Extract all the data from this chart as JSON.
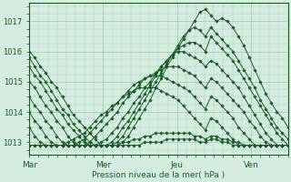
{
  "title": "Pression niveau de la mer( hPa )",
  "bg_color": "#d4ede0",
  "grid_color": "#a8cdb8",
  "line_color": "#1a5c28",
  "ylim": [
    1012.6,
    1017.6
  ],
  "yticks": [
    1013,
    1014,
    1015,
    1016,
    1017
  ],
  "xtick_labels": [
    "Mar",
    "Mer",
    "Jeu",
    "Ven"
  ],
  "xtick_positions": [
    0,
    48,
    96,
    144
  ],
  "total_hours": 168,
  "series": [
    [
      1016.0,
      1015.8,
      1015.5,
      1015.3,
      1015.0,
      1014.8,
      1014.5,
      1014.2,
      1013.9,
      1013.7,
      1013.5,
      1013.3,
      1013.1,
      1012.9,
      1012.9,
      1012.9,
      1012.9,
      1013.0,
      1013.2,
      1013.5,
      1013.8,
      1014.1,
      1014.4,
      1014.8,
      1015.1,
      1015.5,
      1015.8,
      1016.1,
      1016.4,
      1016.7,
      1017.0,
      1017.3,
      1017.4,
      1017.2,
      1017.0,
      1017.1,
      1017.0,
      1016.8,
      1016.5,
      1016.2,
      1015.8,
      1015.4,
      1015.0,
      1014.6,
      1014.3,
      1014.0,
      1013.8,
      1013.5
    ],
    [
      1015.8,
      1015.5,
      1015.2,
      1015.0,
      1014.7,
      1014.4,
      1014.1,
      1013.9,
      1013.6,
      1013.4,
      1013.2,
      1013.0,
      1012.9,
      1012.9,
      1012.9,
      1012.9,
      1013.0,
      1013.2,
      1013.5,
      1013.8,
      1014.1,
      1014.4,
      1014.7,
      1015.0,
      1015.3,
      1015.6,
      1015.9,
      1016.2,
      1016.5,
      1016.7,
      1016.8,
      1016.7,
      1016.5,
      1016.8,
      1016.6,
      1016.4,
      1016.2,
      1016.0,
      1015.7,
      1015.4,
      1015.1,
      1014.8,
      1014.4,
      1014.1,
      1013.8,
      1013.5,
      1013.3,
      1013.1
    ],
    [
      1015.5,
      1015.2,
      1015.0,
      1014.7,
      1014.4,
      1014.1,
      1013.9,
      1013.6,
      1013.4,
      1013.2,
      1013.0,
      1012.9,
      1012.9,
      1012.9,
      1012.9,
      1013.0,
      1013.2,
      1013.5,
      1013.7,
      1014.0,
      1014.3,
      1014.6,
      1014.9,
      1015.2,
      1015.5,
      1015.7,
      1015.9,
      1016.1,
      1016.2,
      1016.3,
      1016.3,
      1016.2,
      1016.0,
      1016.5,
      1016.3,
      1016.1,
      1015.9,
      1015.7,
      1015.4,
      1015.1,
      1014.8,
      1014.5,
      1014.2,
      1013.9,
      1013.6,
      1013.3,
      1013.1,
      1012.9
    ],
    [
      1015.0,
      1014.8,
      1014.5,
      1014.2,
      1014.0,
      1013.7,
      1013.5,
      1013.2,
      1013.0,
      1012.9,
      1012.9,
      1012.9,
      1012.9,
      1013.0,
      1013.1,
      1013.3,
      1013.5,
      1013.8,
      1014.0,
      1014.3,
      1014.5,
      1014.8,
      1015.0,
      1015.3,
      1015.5,
      1015.7,
      1015.9,
      1016.0,
      1016.0,
      1015.9,
      1015.8,
      1015.7,
      1015.5,
      1015.7,
      1015.6,
      1015.4,
      1015.2,
      1015.0,
      1014.8,
      1014.5,
      1014.2,
      1013.9,
      1013.6,
      1013.3,
      1013.1,
      1012.9,
      1012.9,
      1012.9
    ],
    [
      1014.5,
      1014.2,
      1014.0,
      1013.7,
      1013.5,
      1013.2,
      1013.0,
      1012.9,
      1012.9,
      1012.9,
      1012.9,
      1013.0,
      1013.2,
      1013.4,
      1013.6,
      1013.8,
      1014.0,
      1014.3,
      1014.5,
      1014.7,
      1014.9,
      1015.1,
      1015.2,
      1015.3,
      1015.4,
      1015.5,
      1015.5,
      1015.5,
      1015.4,
      1015.3,
      1015.2,
      1015.0,
      1014.8,
      1015.1,
      1015.0,
      1014.8,
      1014.6,
      1014.4,
      1014.2,
      1014.0,
      1013.7,
      1013.5,
      1013.2,
      1013.0,
      1012.9,
      1012.9,
      1012.9,
      1012.9
    ],
    [
      1014.0,
      1013.7,
      1013.5,
      1013.2,
      1013.0,
      1012.9,
      1012.9,
      1012.9,
      1012.9,
      1013.0,
      1013.1,
      1013.3,
      1013.5,
      1013.7,
      1013.9,
      1014.1,
      1014.3,
      1014.5,
      1014.7,
      1014.9,
      1015.0,
      1015.1,
      1015.2,
      1015.2,
      1015.2,
      1015.1,
      1015.0,
      1014.9,
      1014.8,
      1014.7,
      1014.5,
      1014.3,
      1014.1,
      1014.5,
      1014.4,
      1014.2,
      1014.0,
      1013.8,
      1013.5,
      1013.3,
      1013.1,
      1012.9,
      1012.9,
      1012.9,
      1012.9,
      1012.9,
      1012.9,
      1012.9
    ],
    [
      1013.5,
      1013.2,
      1013.0,
      1012.9,
      1012.9,
      1012.9,
      1012.9,
      1013.0,
      1013.1,
      1013.2,
      1013.3,
      1013.5,
      1013.7,
      1013.9,
      1014.0,
      1014.2,
      1014.3,
      1014.5,
      1014.6,
      1014.7,
      1014.8,
      1014.8,
      1014.8,
      1014.8,
      1014.7,
      1014.6,
      1014.5,
      1014.4,
      1014.2,
      1014.0,
      1013.8,
      1013.6,
      1013.4,
      1013.8,
      1013.7,
      1013.5,
      1013.3,
      1013.1,
      1012.9,
      1012.9,
      1012.9,
      1012.9,
      1012.9,
      1012.9,
      1012.9,
      1012.9,
      1012.9,
      1012.9
    ],
    [
      1012.9,
      1012.9,
      1012.9,
      1012.9,
      1012.9,
      1012.9,
      1012.9,
      1012.9,
      1012.9,
      1012.9,
      1012.9,
      1012.9,
      1012.9,
      1012.9,
      1012.9,
      1012.9,
      1012.9,
      1013.0,
      1013.0,
      1013.1,
      1013.1,
      1013.2,
      1013.2,
      1013.3,
      1013.3,
      1013.3,
      1013.3,
      1013.3,
      1013.3,
      1013.3,
      1013.2,
      1013.2,
      1013.1,
      1013.2,
      1013.2,
      1013.1,
      1013.1,
      1013.0,
      1013.0,
      1012.9,
      1012.9,
      1012.9,
      1012.9,
      1012.9,
      1012.9,
      1012.9,
      1012.9,
      1012.9
    ],
    [
      1012.9,
      1012.9,
      1012.9,
      1012.9,
      1012.9,
      1012.9,
      1012.9,
      1012.9,
      1012.9,
      1012.9,
      1012.9,
      1012.9,
      1012.9,
      1012.9,
      1012.9,
      1012.9,
      1012.9,
      1012.9,
      1012.9,
      1012.9,
      1012.9,
      1013.0,
      1013.0,
      1013.0,
      1013.0,
      1013.1,
      1013.1,
      1013.1,
      1013.1,
      1013.1,
      1013.1,
      1013.0,
      1013.0,
      1013.1,
      1013.1,
      1013.0,
      1013.0,
      1012.9,
      1012.9,
      1012.9,
      1012.9,
      1012.9,
      1012.9,
      1012.9,
      1012.9,
      1012.9,
      1012.9,
      1012.9
    ]
  ]
}
